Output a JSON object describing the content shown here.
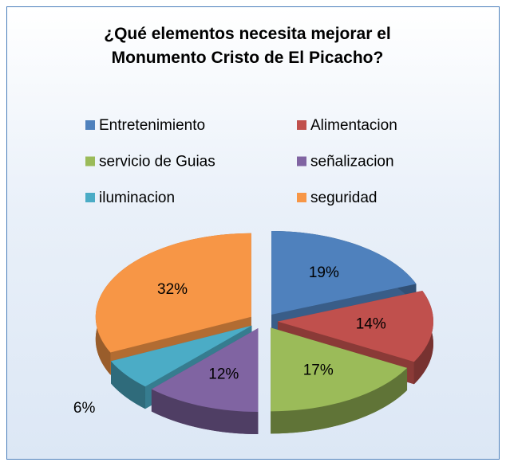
{
  "chart_data": {
    "type": "pie",
    "title": "¿Qué elementos necesita mejorar el Monumento Cristo de El Picacho?",
    "categories": [
      "Entretenimiento",
      "Alimentacion",
      "servicio de Guias",
      "señalizacion",
      "iluminacion",
      "seguridad"
    ],
    "values": [
      19,
      14,
      17,
      12,
      6,
      32
    ],
    "value_labels": [
      "19%",
      "14%",
      "17%",
      "12%",
      "6%",
      "32%"
    ],
    "colors": [
      "#4f81bd",
      "#c0504d",
      "#9bbb59",
      "#8064a2",
      "#4bacc6",
      "#f79646"
    ],
    "legend": "top",
    "exploded": true,
    "three_d": true
  }
}
